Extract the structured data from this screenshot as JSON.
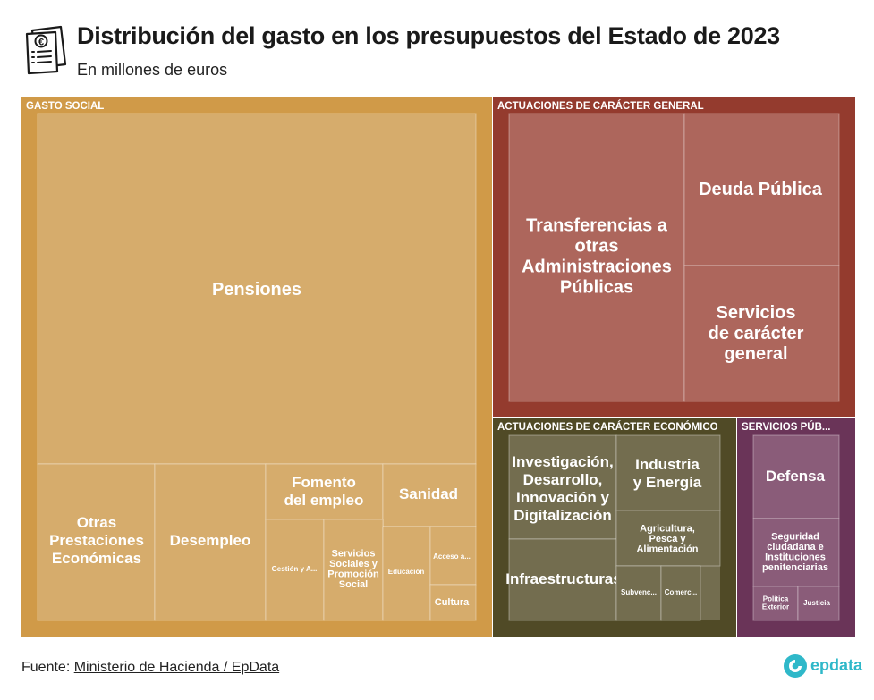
{
  "header": {
    "title": "Distribución del gasto en los presupuestos del Estado de 2023",
    "subtitle": "En millones de euros",
    "icon": "document-euro-icon"
  },
  "footer": {
    "source_label": "Fuente: ",
    "source_link": "Ministerio de Hacienda / EpData"
  },
  "brand": {
    "name": "epdata",
    "icon": "epdata-logo-icon",
    "color": "#2fb8c9"
  },
  "chart_data": {
    "type": "treemap",
    "unit": "millones de euros",
    "groups": [
      {
        "name": "GASTO SOCIAL",
        "color": "#d09a48",
        "leaf_color": "#d6ac6c",
        "items": [
          {
            "name": "Pensiones",
            "size": "large"
          },
          {
            "name": "Otras Prestaciones Económicas",
            "size": "medium"
          },
          {
            "name": "Desempleo",
            "size": "medium"
          },
          {
            "name": "Fomento del empleo",
            "size": "medium"
          },
          {
            "name": "Sanidad",
            "size": "medium"
          },
          {
            "name": "Gestión y A...",
            "size": "tiny"
          },
          {
            "name": "Servicios Sociales y Promoción Social",
            "size": "small"
          },
          {
            "name": "Educación",
            "size": "tiny"
          },
          {
            "name": "Acceso a...",
            "size": "tiny"
          },
          {
            "name": "Cultura",
            "size": "small"
          }
        ]
      },
      {
        "name": "ACTUACIONES DE CARÁCTER GENERAL",
        "color": "#943b2e",
        "leaf_color": "#ad665c",
        "items": [
          {
            "name": "Transferencias a otras Administraciones Públicas",
            "size": "large"
          },
          {
            "name": "Deuda Pública",
            "size": "large"
          },
          {
            "name": "Servicios de carácter general",
            "size": "large"
          }
        ]
      },
      {
        "name": "ACTUACIONES DE CARÁCTER ECONÓMICO",
        "color": "#504a26",
        "leaf_color": "#736d4f",
        "items": [
          {
            "name": "Investigación, Desarrollo, Innovación y Digitalización",
            "size": "medium"
          },
          {
            "name": "Industria y Energía",
            "size": "medium"
          },
          {
            "name": "Infraestructuras",
            "size": "medium"
          },
          {
            "name": "Agricultura, Pesca y Alimentación",
            "size": "small"
          },
          {
            "name": "Subvenc...",
            "size": "tiny"
          },
          {
            "name": "Comerc...",
            "size": "tiny"
          }
        ]
      },
      {
        "name": "SERVICIOS PÚB...",
        "color": "#6a3458",
        "leaf_color": "#8a5c79",
        "items": [
          {
            "name": "Defensa",
            "size": "medium"
          },
          {
            "name": "Seguridad ciudadana e Instituciones penitenciarias",
            "size": "small"
          },
          {
            "name": "Política Exterior",
            "size": "tiny"
          },
          {
            "name": "Justicia",
            "size": "tiny"
          }
        ]
      }
    ]
  }
}
